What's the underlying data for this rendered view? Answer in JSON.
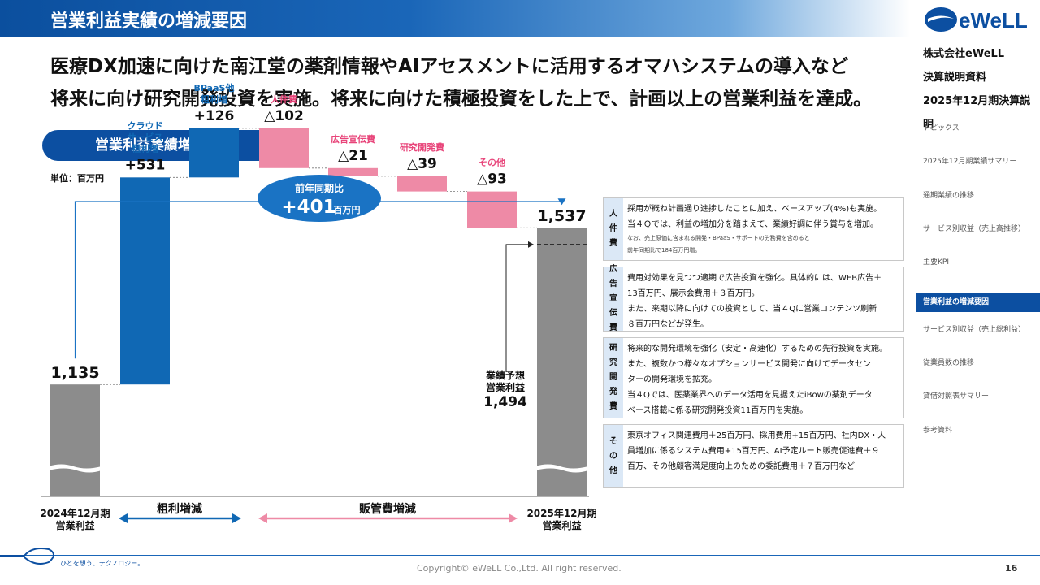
{
  "header": {
    "title": "営業利益実績の増減要因"
  },
  "company": {
    "name": "株式会社eWeLL",
    "doc": "決算説明資料",
    "period": "2025年12月期決算説明",
    "logo_text": "eWeLL"
  },
  "lead": {
    "line1": "医療DX加速に向けた南江堂の薬剤情報やAIアセスメントに活用するオマハシステムの導入など",
    "line2": "将来に向け研究開発投資を実施。将来に向けた積極投資をした上で、計画以上の営業利益を達成。"
  },
  "section": {
    "title": "営業利益実績増減分析"
  },
  "unit": "単位：百万円",
  "badge": {
    "label": "前年同期比",
    "value": "+401",
    "unit": "百万円"
  },
  "sidenav": [
    {
      "label": "トピックス",
      "active": false
    },
    {
      "label": "2025年12月期業績サマリー",
      "active": false
    },
    {
      "label": "通期業績の推移",
      "active": false
    },
    {
      "label": "サービス別収益（売上高推移）",
      "active": false
    },
    {
      "label": "主要KPI",
      "active": false
    },
    {
      "label": "営業利益の増減要因",
      "active": true
    },
    {
      "label": "サービス別収益（売上総利益）",
      "active": false
    },
    {
      "label": "従業員数の推移",
      "active": false
    },
    {
      "label": "貸借対照表サマリー",
      "active": false
    },
    {
      "label": "参考資料",
      "active": false
    }
  ],
  "chart_data": {
    "type": "waterfall",
    "unit": "百万円",
    "forecast": {
      "label_lines": [
        "業績予想",
        "営業利益"
      ],
      "value": 1494,
      "value_label": "1,494"
    },
    "steps": [
      {
        "kind": "total",
        "value": 1135,
        "value_label": "1,135",
        "label_lines": [],
        "color": "#8c8c8c"
      },
      {
        "kind": "delta",
        "value": 531,
        "value_label": "+531",
        "label_lines": [
          "クラウド",
          "サービス",
          "粗利増"
        ],
        "color": "#1068b4",
        "label_color": "#1068b4"
      },
      {
        "kind": "delta",
        "value": 126,
        "value_label": "+126",
        "label_lines": [
          "BPaaS他",
          "粗利増"
        ],
        "color": "#1068b4",
        "label_color": "#1068b4"
      },
      {
        "kind": "delta",
        "value": -102,
        "value_label": "△102",
        "label_lines": [
          "人件費"
        ],
        "color": "#ee8aa6",
        "label_color": "#e8457a"
      },
      {
        "kind": "delta",
        "value": -21,
        "value_label": "△21",
        "label_lines": [
          "広告宣伝費"
        ],
        "color": "#ee8aa6",
        "label_color": "#e8457a"
      },
      {
        "kind": "delta",
        "value": -39,
        "value_label": "△39",
        "label_lines": [
          "研究開発費"
        ],
        "color": "#ee8aa6",
        "label_color": "#e8457a"
      },
      {
        "kind": "delta",
        "value": -93,
        "value_label": "△93",
        "label_lines": [
          "その他"
        ],
        "color": "#ee8aa6",
        "label_color": "#e8457a"
      },
      {
        "kind": "total",
        "value": 1537,
        "value_label": "1,537",
        "label_lines": [],
        "color": "#8c8c8c"
      }
    ],
    "x_labels": [
      {
        "lines": [
          "2024年12月期",
          "営業利益"
        ]
      },
      {
        "lines": [
          "2025年12月期",
          "営業利益"
        ]
      }
    ],
    "groups": [
      {
        "label": "粗利増減",
        "color": "#1068b4"
      },
      {
        "label": "販管費増減",
        "color": "#ee8aa6"
      }
    ]
  },
  "notes": [
    {
      "tag": [
        "人",
        "件",
        "費"
      ],
      "lines": [
        "採用が概ね計画通り進捗したことに加え、ベースアップ(4%)も実施。",
        "当４Ｑでは、利益の増加分を踏まえて、業績好調に伴う賞与を増加。"
      ],
      "small": [
        "なお、売上原価に含まれる開発・BPaaS・サポートの労務費を含めると",
        "前年同期比で184百万円増。"
      ]
    },
    {
      "tag": [
        "広",
        "告",
        "宣",
        "伝",
        "費"
      ],
      "lines": [
        "費用対効果を見つつ適期で広告投資を強化。具体的には、WEB広告＋",
        "13百万円、展示会費用＋３百万円。",
        "また、来期以降に向けての投資として、当４Qに営業コンテンツ刷新",
        "８百万円などが発生。"
      ],
      "small": []
    },
    {
      "tag": [
        "研",
        "究",
        "開",
        "発",
        "費"
      ],
      "lines": [
        "将来的な開発環境を強化（安定・高速化）するための先行投資を実施。",
        "また、複数かつ様々なオプションサービス開発に向けてデータセン",
        "ターの開発環境を拡充。",
        "当４Qでは、医薬業界へのデータ活用を見据えたiBowの薬剤データ",
        "ベース搭載に係る研究開発投資11百万円を実施。"
      ],
      "small": []
    },
    {
      "tag": [
        "そ",
        "の",
        "他"
      ],
      "lines": [
        "東京オフィス関連費用＋25百万円、採用費用+15百万円、社内DX・人",
        "員増加に係るシステム費用+15百万円、AI予定ルート販売促進費＋９",
        "百万、その他顧客満足度向上のための委託費用＋７百万円など"
      ],
      "small": []
    }
  ],
  "footer": {
    "tagline": "ひとを想う、テクノロジー。",
    "copyright": "Copyright© eWeLL Co.,Ltd. All right reserved.",
    "page": "16"
  },
  "colors": {
    "brand": "#0c4fa1",
    "increase": "#1068b4",
    "decrease": "#ee8aa6",
    "total": "#8c8c8c"
  }
}
